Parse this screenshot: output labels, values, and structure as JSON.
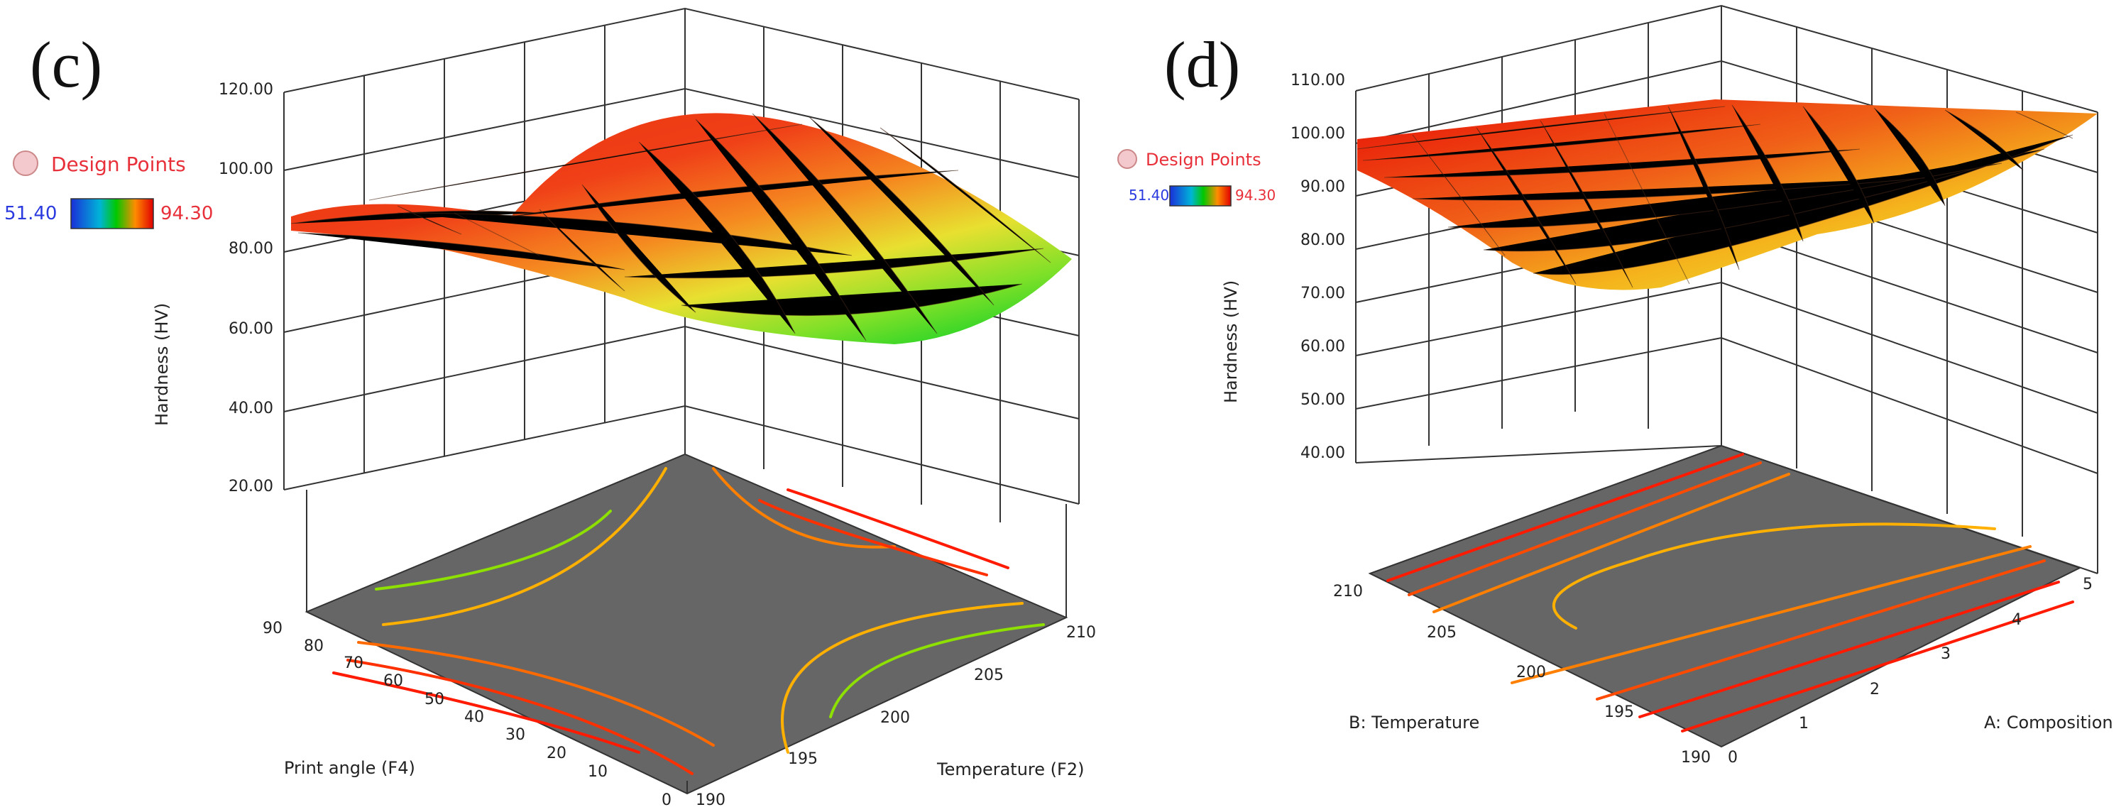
{
  "figure": {
    "panels": [
      {
        "letter": "(c)",
        "legend": {
          "design_points_label": "Design Points",
          "min": "51.40",
          "max": "94.30"
        },
        "z_ticks": [
          "120.00",
          "100.00",
          "80.00",
          "60.00",
          "40.00",
          "20.00"
        ],
        "z_title": "Hardness (HV)",
        "x_title": "Print angle (F4)",
        "x_ticks": [
          "0",
          "10",
          "20",
          "30",
          "40",
          "50",
          "60",
          "70",
          "80",
          "90"
        ],
        "y_title": "Temperature (F2)",
        "y_ticks": [
          "190",
          "195",
          "200",
          "205",
          "210"
        ]
      },
      {
        "letter": "(d)",
        "legend": {
          "design_points_label": "Design Points",
          "min": "51.40",
          "max": "94.30"
        },
        "z_ticks": [
          "110.00",
          "100.00",
          "90.00",
          "80.00",
          "70.00",
          "60.00",
          "50.00",
          "40.00"
        ],
        "z_title": "Hardness (HV)",
        "x_title": "B: Temperature",
        "x_ticks": [
          "210",
          "205",
          "200",
          "195",
          "190"
        ],
        "y_title": "A: Composition",
        "y_ticks": [
          "0",
          "1",
          "2",
          "3",
          "4",
          "5"
        ]
      }
    ]
  },
  "colors": {
    "low": "#00e000",
    "mid": "#e8e800",
    "high": "#ff0000",
    "floor": "#666666",
    "design_points": "#e8303a",
    "legend_min": "#2a3adf"
  },
  "chart_data": [
    {
      "type": "surface",
      "title": "(c)",
      "x_label": "Print angle (F4)",
      "x_range": [
        0,
        90
      ],
      "y_label": "Temperature (F2)",
      "y_range": [
        190,
        210
      ],
      "z_label": "Hardness (HV)",
      "z_range": [
        20,
        120
      ],
      "color_scale": [
        51.4,
        94.3
      ],
      "corner_values": {
        "x0_y190": 72,
        "x90_y190": 86,
        "x0_y210": 62,
        "x90_y210": 84,
        "center": 80
      },
      "contour_levels": [
        60,
        65,
        70,
        75,
        80,
        85,
        90
      ]
    },
    {
      "type": "surface",
      "title": "(d)",
      "x_label": "B: Temperature",
      "x_range": [
        190,
        210
      ],
      "y_label": "A: Composition",
      "y_range": [
        0,
        5
      ],
      "z_label": "Hardness (HV)",
      "z_range": [
        40,
        110
      ],
      "color_scale": [
        51.4,
        94.3
      ],
      "corner_values": {
        "A0_B210": 100,
        "A5_B210": 103,
        "A0_B190": 83,
        "A5_B190": 95,
        "minimum": 80
      },
      "contour_levels": [
        82,
        86,
        90,
        94,
        98
      ]
    }
  ]
}
